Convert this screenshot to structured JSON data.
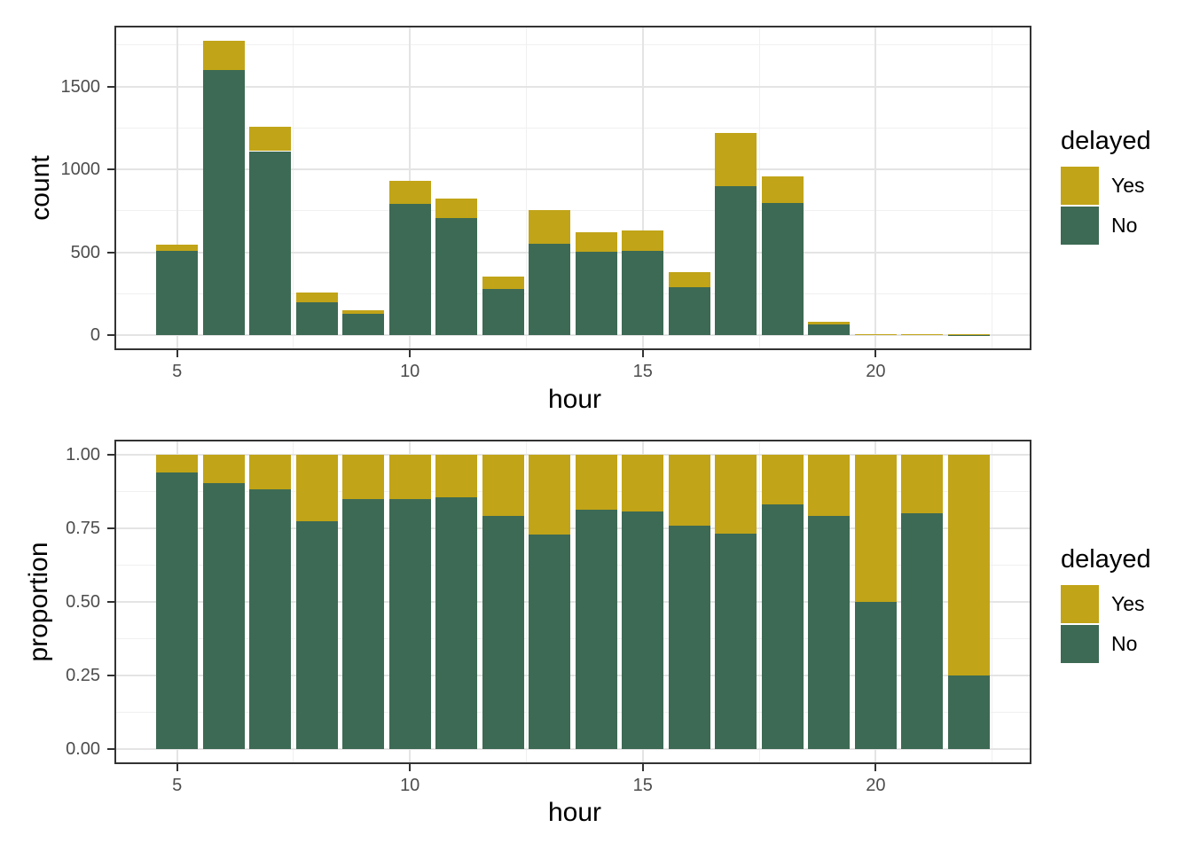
{
  "chart_data": [
    {
      "type": "bar",
      "stacked": true,
      "title": "",
      "xlabel": "hour",
      "ylabel": "count",
      "grid": true,
      "legend": {
        "title": "delayed",
        "position": "right",
        "entries": [
          {
            "label": "Yes",
            "color": "#C1A418"
          },
          {
            "label": "No",
            "color": "#3D6A54"
          }
        ]
      },
      "x": [
        5,
        6,
        7,
        8,
        9,
        10,
        11,
        12,
        13,
        14,
        15,
        16,
        17,
        18,
        19,
        20,
        21,
        22
      ],
      "series": [
        {
          "name": "No",
          "color": "#3D6A54",
          "values": [
            510,
            1600,
            1110,
            200,
            128,
            790,
            706,
            278,
            550,
            505,
            508,
            289,
            897,
            795,
            64,
            3,
            4,
            1
          ]
        },
        {
          "name": "Yes",
          "color": "#C1A418",
          "values": [
            33,
            175,
            148,
            57,
            24,
            141,
            116,
            75,
            205,
            116,
            122,
            91,
            325,
            163,
            16,
            3,
            1,
            3
          ]
        }
      ],
      "x_ticks": {
        "values": [
          5,
          10,
          15,
          20
        ],
        "labels": [
          "5",
          "10",
          "15",
          "20"
        ]
      },
      "y_ticks": {
        "values": [
          0,
          500,
          1000,
          1500
        ],
        "labels": [
          "0",
          "500",
          "1000",
          "1500"
        ]
      },
      "x_minor": [
        7.5,
        12.5,
        17.5,
        22.5
      ],
      "y_minor": [
        250,
        750,
        1250,
        1750
      ],
      "xlim": [
        3.655,
        23.345
      ],
      "ylim": [
        -91,
        1867
      ],
      "bar_width": 0.9
    },
    {
      "type": "bar",
      "stacked": true,
      "title": "",
      "xlabel": "hour",
      "ylabel": "proportion",
      "grid": true,
      "legend": {
        "title": "delayed",
        "position": "right",
        "entries": [
          {
            "label": "Yes",
            "color": "#C1A418"
          },
          {
            "label": "No",
            "color": "#3D6A54"
          }
        ]
      },
      "x": [
        5,
        6,
        7,
        8,
        9,
        10,
        11,
        12,
        13,
        14,
        15,
        16,
        17,
        18,
        19,
        20,
        21,
        22
      ],
      "series": [
        {
          "name": "No",
          "color": "#3D6A54",
          "values": [
            0.94,
            0.905,
            0.883,
            0.775,
            0.85,
            0.849,
            0.856,
            0.792,
            0.728,
            0.813,
            0.808,
            0.76,
            0.733,
            0.831,
            0.794,
            0.5,
            0.803,
            0.25
          ]
        },
        {
          "name": "Yes",
          "color": "#C1A418",
          "values": [
            0.06,
            0.095,
            0.117,
            0.225,
            0.15,
            0.151,
            0.144,
            0.208,
            0.272,
            0.187,
            0.192,
            0.24,
            0.267,
            0.169,
            0.206,
            0.5,
            0.197,
            0.75
          ]
        }
      ],
      "x_ticks": {
        "values": [
          5,
          10,
          15,
          20
        ],
        "labels": [
          "5",
          "10",
          "15",
          "20"
        ]
      },
      "y_ticks": {
        "values": [
          0,
          0.25,
          0.5,
          0.75,
          1
        ],
        "labels": [
          "0.00",
          "0.25",
          "0.50",
          "0.75",
          "1.00"
        ]
      },
      "x_minor": [
        7.5,
        12.5,
        17.5,
        22.5
      ],
      "y_minor": [
        0.125,
        0.375,
        0.625,
        0.875
      ],
      "xlim": [
        3.655,
        23.345
      ],
      "ylim": [
        -0.0525,
        1.0525
      ],
      "bar_width": 0.9
    }
  ],
  "colors": {
    "yes": "#C1A418",
    "no": "#3D6A54",
    "panel_border": "#333333",
    "grid_major": "#E4E4E4",
    "grid_minor": "#F0F0F0",
    "tick_text": "#4D4D4D"
  }
}
